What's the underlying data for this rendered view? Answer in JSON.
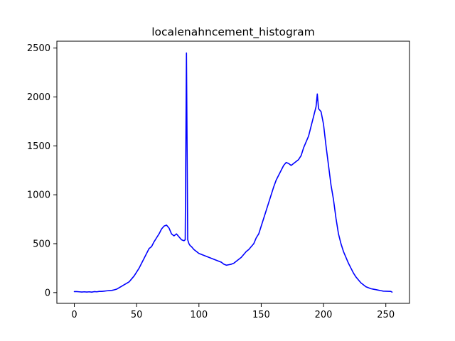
{
  "chart_data": {
    "type": "line",
    "title": "localenahncement_histogram",
    "xlabel": "",
    "ylabel": "",
    "xlim": [
      -14,
      269
    ],
    "ylim": [
      -110,
      2570
    ],
    "xticks": [
      0,
      50,
      100,
      150,
      200,
      250
    ],
    "yticks": [
      0,
      500,
      1000,
      1500,
      2000,
      2500
    ],
    "xtick_labels": [
      "0",
      "50",
      "100",
      "150",
      "200",
      "250"
    ],
    "ytick_labels": [
      "0",
      "500",
      "1000",
      "1500",
      "2000",
      "2500"
    ],
    "grid": false,
    "legend": "none",
    "series": [
      {
        "color": "#0000ff",
        "x": [
          0,
          2,
          4,
          6,
          8,
          10,
          12,
          14,
          16,
          18,
          20,
          22,
          24,
          26,
          28,
          30,
          32,
          34,
          36,
          38,
          40,
          42,
          44,
          46,
          48,
          50,
          52,
          54,
          56,
          58,
          60,
          62,
          64,
          66,
          68,
          70,
          72,
          74,
          76,
          78,
          80,
          82,
          84,
          86,
          88,
          89,
          90,
          91,
          92,
          93,
          94,
          96,
          98,
          100,
          102,
          104,
          106,
          108,
          110,
          112,
          114,
          116,
          118,
          120,
          122,
          124,
          126,
          128,
          130,
          132,
          134,
          136,
          138,
          140,
          142,
          144,
          146,
          148,
          150,
          152,
          154,
          156,
          158,
          160,
          162,
          164,
          166,
          168,
          170,
          172,
          174,
          176,
          178,
          180,
          182,
          184,
          186,
          188,
          190,
          192,
          194,
          195,
          196,
          198,
          200,
          202,
          204,
          206,
          208,
          210,
          212,
          214,
          216,
          218,
          220,
          222,
          224,
          226,
          228,
          230,
          232,
          234,
          236,
          238,
          240,
          242,
          244,
          246,
          248,
          250,
          252,
          254,
          255
        ],
        "y": [
          10,
          10,
          8,
          6,
          8,
          6,
          8,
          5,
          10,
          8,
          12,
          12,
          15,
          18,
          20,
          22,
          28,
          35,
          50,
          65,
          80,
          95,
          110,
          140,
          170,
          210,
          250,
          300,
          350,
          400,
          450,
          470,
          520,
          560,
          600,
          650,
          680,
          690,
          660,
          600,
          580,
          600,
          570,
          540,
          530,
          540,
          2450,
          540,
          500,
          480,
          470,
          440,
          420,
          400,
          390,
          380,
          370,
          360,
          350,
          340,
          330,
          320,
          310,
          290,
          280,
          285,
          290,
          300,
          320,
          340,
          360,
          390,
          420,
          440,
          470,
          500,
          560,
          600,
          680,
          760,
          840,
          920,
          1000,
          1080,
          1150,
          1200,
          1250,
          1300,
          1330,
          1320,
          1300,
          1320,
          1340,
          1360,
          1400,
          1480,
          1540,
          1600,
          1700,
          1800,
          1900,
          2030,
          1880,
          1850,
          1720,
          1500,
          1300,
          1100,
          950,
          760,
          600,
          500,
          420,
          360,
          300,
          250,
          200,
          160,
          130,
          100,
          80,
          60,
          50,
          40,
          35,
          30,
          25,
          20,
          15,
          14,
          13,
          12,
          5
        ]
      }
    ]
  }
}
